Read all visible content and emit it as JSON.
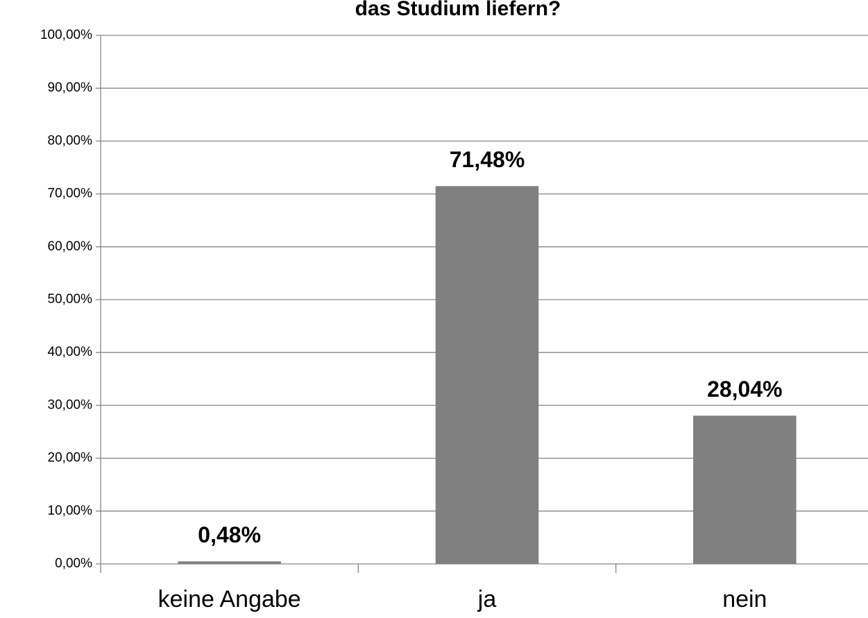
{
  "chart_data": {
    "type": "bar",
    "title": "das Studium liefern?",
    "categories": [
      "keine Angabe",
      "ja",
      "nein"
    ],
    "values": [
      0.48,
      71.48,
      28.04
    ],
    "value_labels": [
      "0,48%",
      "71,48%",
      "28,04%"
    ],
    "color": "#808080",
    "ylim": [
      0,
      100
    ],
    "yticks": [
      {
        "value": 0,
        "label": "0,00%"
      },
      {
        "value": 10,
        "label": "10,00%"
      },
      {
        "value": 20,
        "label": "20,00%"
      },
      {
        "value": 30,
        "label": "30,00%"
      },
      {
        "value": 40,
        "label": "40,00%"
      },
      {
        "value": 50,
        "label": "50,00%"
      },
      {
        "value": 60,
        "label": "60,00%"
      },
      {
        "value": 70,
        "label": "70,00%"
      },
      {
        "value": 80,
        "label": "80,00%"
      },
      {
        "value": 90,
        "label": "90,00%"
      },
      {
        "value": 100,
        "label": "100,00%"
      }
    ],
    "grid": true
  }
}
